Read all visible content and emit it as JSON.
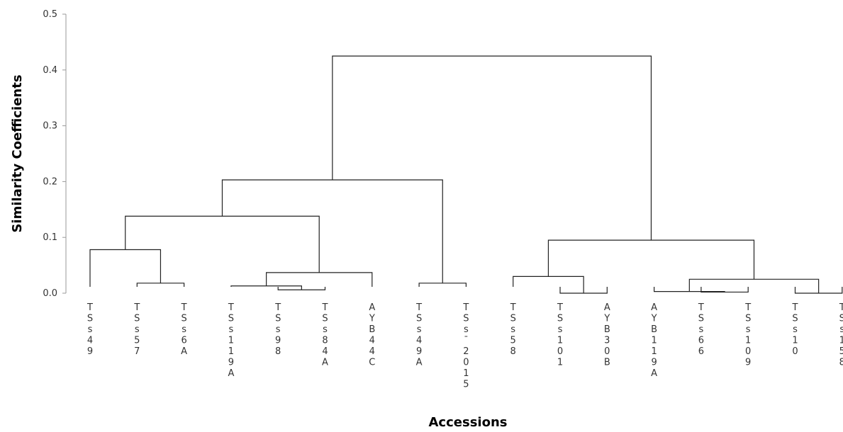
{
  "chart_data": {
    "type": "dendrogram",
    "title": "",
    "xlabel": "Accessions",
    "ylabel": "Similarity Coefficients",
    "ylim": [
      0,
      0.5
    ],
    "yticks": [
      {
        "value": 0.5,
        "label": "0.5"
      },
      {
        "value": 0.4,
        "label": "0.4"
      },
      {
        "value": 0.3,
        "label": "0.3"
      },
      {
        "value": 0.2,
        "label": "0.2"
      },
      {
        "value": 0.1,
        "label": "0.1"
      },
      {
        "value": 0.0,
        "label": "0.0"
      }
    ],
    "grid": false,
    "leaves": [
      "TSs49",
      "TSs57",
      "TSs6A",
      "TSs119A",
      "TSs98",
      "TSs84A",
      "AYB44C",
      "TSs49A",
      "TSs_2015",
      "TSs58",
      "TSs101",
      "AYB30B",
      "AYB119A",
      "TSs66",
      "TSs109",
      "TSs10",
      "TSs158"
    ],
    "nodes": [
      {
        "id": "n1",
        "left": "L1",
        "right": "L2",
        "height": 0.018
      },
      {
        "id": "n2",
        "left": "L0",
        "right": "n1",
        "height": 0.078
      },
      {
        "id": "n3",
        "left": "L4",
        "right": "L5",
        "height": 0.006
      },
      {
        "id": "n4",
        "left": "L3",
        "right": "n3",
        "height": 0.013
      },
      {
        "id": "n5",
        "left": "n4",
        "right": "L6",
        "height": 0.037
      },
      {
        "id": "n6",
        "left": "n2",
        "right": "n5",
        "height": 0.138
      },
      {
        "id": "n7",
        "left": "L7",
        "right": "L8",
        "height": 0.018
      },
      {
        "id": "n8",
        "left": "n6",
        "right": "n7",
        "height": 0.203
      },
      {
        "id": "n9",
        "left": "L10",
        "right": "L11",
        "height": 0.0
      },
      {
        "id": "n10",
        "left": "L9",
        "right": "n9",
        "height": 0.03
      },
      {
        "id": "n11",
        "left": "L13",
        "right": "L14",
        "height": 0.002
      },
      {
        "id": "n12",
        "left": "L12",
        "right": "n11",
        "height": 0.003
      },
      {
        "id": "n13",
        "left": "L15",
        "right": "L16",
        "height": 0.0
      },
      {
        "id": "n14",
        "left": "n12",
        "right": "n13",
        "height": 0.025
      },
      {
        "id": "n15",
        "left": "n10",
        "right": "n14",
        "height": 0.095
      },
      {
        "id": "n16",
        "left": "n8",
        "right": "n15",
        "height": 0.425
      }
    ]
  }
}
